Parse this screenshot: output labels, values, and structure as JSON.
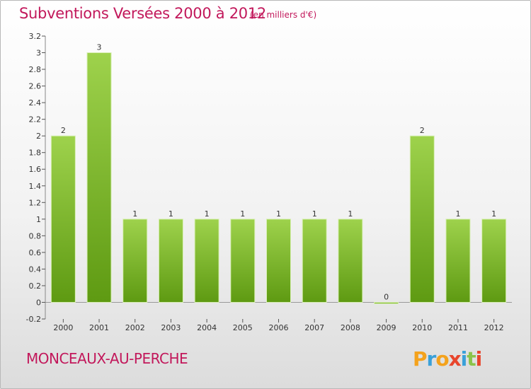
{
  "title": "Subventions Versées 2000 à 2012",
  "subtitle": "(en milliers d'€)",
  "commune": "MONCEAUX-AU-PERCHE",
  "logo": {
    "letters": [
      "P",
      "r",
      "o",
      "x",
      "i",
      "t",
      "i"
    ],
    "colors": [
      "#f4a21c",
      "#3aa0d8",
      "#f4a21c",
      "#e8452c",
      "#3aa0d8",
      "#8bc34a",
      "#e8452c"
    ]
  },
  "colors": {
    "bar_light": "#9ed24c",
    "bar_dark": "#5e9a12",
    "text_accent": "#c2185b",
    "grid": "#cccccc"
  },
  "chart_data": {
    "type": "bar",
    "categories": [
      "2000",
      "2001",
      "2002",
      "2003",
      "2004",
      "2005",
      "2006",
      "2007",
      "2008",
      "2009",
      "2010",
      "2011",
      "2012"
    ],
    "values": [
      2,
      3,
      1,
      1,
      1,
      1,
      1,
      1,
      1,
      0,
      2,
      1,
      1
    ],
    "data_labels": [
      "2",
      "3",
      "1",
      "1",
      "1",
      "1",
      "1",
      "1",
      "1",
      "0",
      "2",
      "1",
      "1"
    ],
    "yticks": [
      "-0.2",
      "0",
      "0.2",
      "0.4",
      "0.6",
      "0.8",
      "1",
      "1.2",
      "1.4",
      "1.6",
      "1.8",
      "2",
      "2.2",
      "2.4",
      "2.6",
      "2.8",
      "3",
      "3.2"
    ],
    "ylim": [
      -0.2,
      3.2
    ],
    "grid": false,
    "legend": "none"
  }
}
